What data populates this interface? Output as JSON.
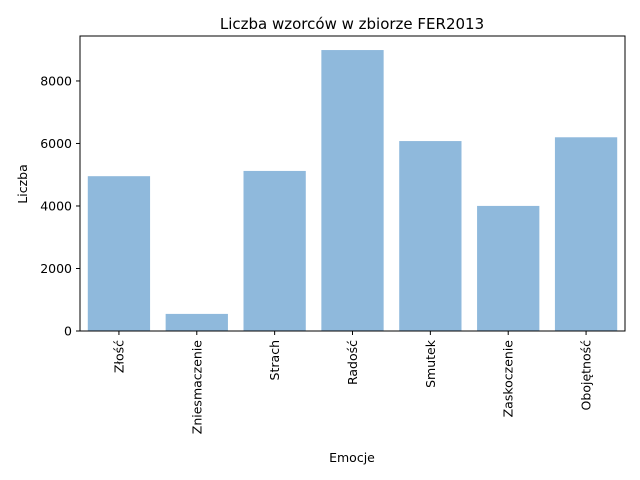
{
  "chart_data": {
    "type": "bar",
    "title": "Liczba wzorców w zbiorze FER2013",
    "xlabel": "Emocje",
    "ylabel": "Liczba",
    "categories": [
      "Złość",
      "Zniesmaczenie",
      "Strach",
      "Radość",
      "Smutek",
      "Zaskoczenie",
      "Obojętność"
    ],
    "values": [
      4953,
      547,
      5121,
      8989,
      6077,
      4002,
      6198
    ],
    "ylim": [
      0,
      9438.45
    ],
    "yticks": [
      0,
      2000,
      4000,
      6000,
      8000
    ],
    "ytick_labels": [
      "0",
      "2000",
      "4000",
      "6000",
      "8000"
    ],
    "bar_color": "#8fb9dc",
    "grid": false,
    "legend": "none"
  }
}
